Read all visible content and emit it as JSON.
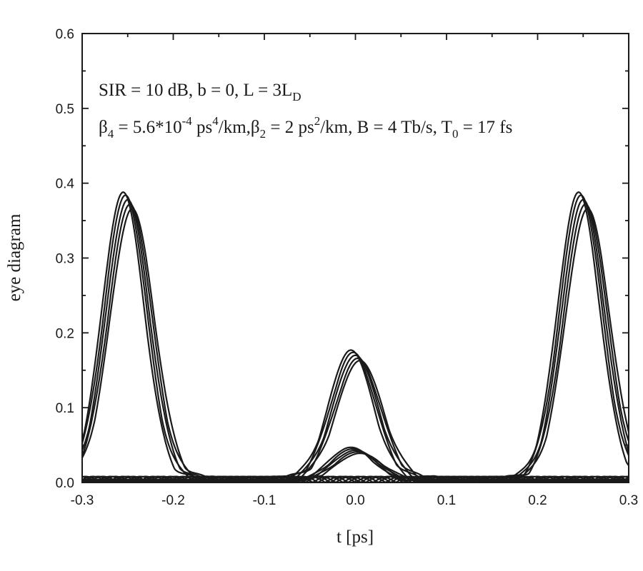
{
  "chart_data": {
    "type": "line",
    "title": "",
    "xlabel": "t [ps]",
    "ylabel": "eye diagram",
    "xlim": [
      -0.3,
      0.3
    ],
    "ylim": [
      0.0,
      0.6
    ],
    "grid": false,
    "x_ticks": [
      "-0.3",
      "-0.2",
      "-0.1",
      "0.0",
      "0.1",
      "0.2",
      "0.3"
    ],
    "y_ticks": [
      "0.0",
      "0.1",
      "0.2",
      "0.3",
      "0.4",
      "0.5",
      "0.6"
    ],
    "annotations": {
      "line1": {
        "a": "SIR = 10 dB, b = 0, L = 3L",
        "a_sub": "D"
      },
      "line2": {
        "a": "β",
        "a_sub": "4",
        "b": " = 5.6*10",
        "b_sup": "-4",
        "c": " ps",
        "c_sup": "4",
        "d": "/km,β",
        "d_sub": "2",
        "e": " = 2 ps",
        "e_sup": "2",
        "f": "/km, B = 4 Tb/s, T",
        "f_sub": "0",
        "g": " = 17 fs"
      }
    },
    "trace_families": [
      {
        "peak_centers": [
          -0.25,
          0.25
        ],
        "peak_heights": [
          0.388,
          0.384,
          0.378,
          0.372,
          0.366
        ],
        "peak_width": 0.033,
        "baseline_ripple": 0.008
      },
      {
        "peak_centers": [
          0.0
        ],
        "peak_heights": [
          0.177,
          0.174,
          0.17,
          0.166,
          0.163
        ],
        "peak_width": 0.034,
        "baseline_ripple": 0.008
      },
      {
        "peak_centers": [
          0.0
        ],
        "peak_heights": [
          0.047,
          0.045,
          0.043,
          0.041,
          0.039
        ],
        "peak_width": 0.034,
        "baseline_ripple": 0.004
      }
    ]
  }
}
